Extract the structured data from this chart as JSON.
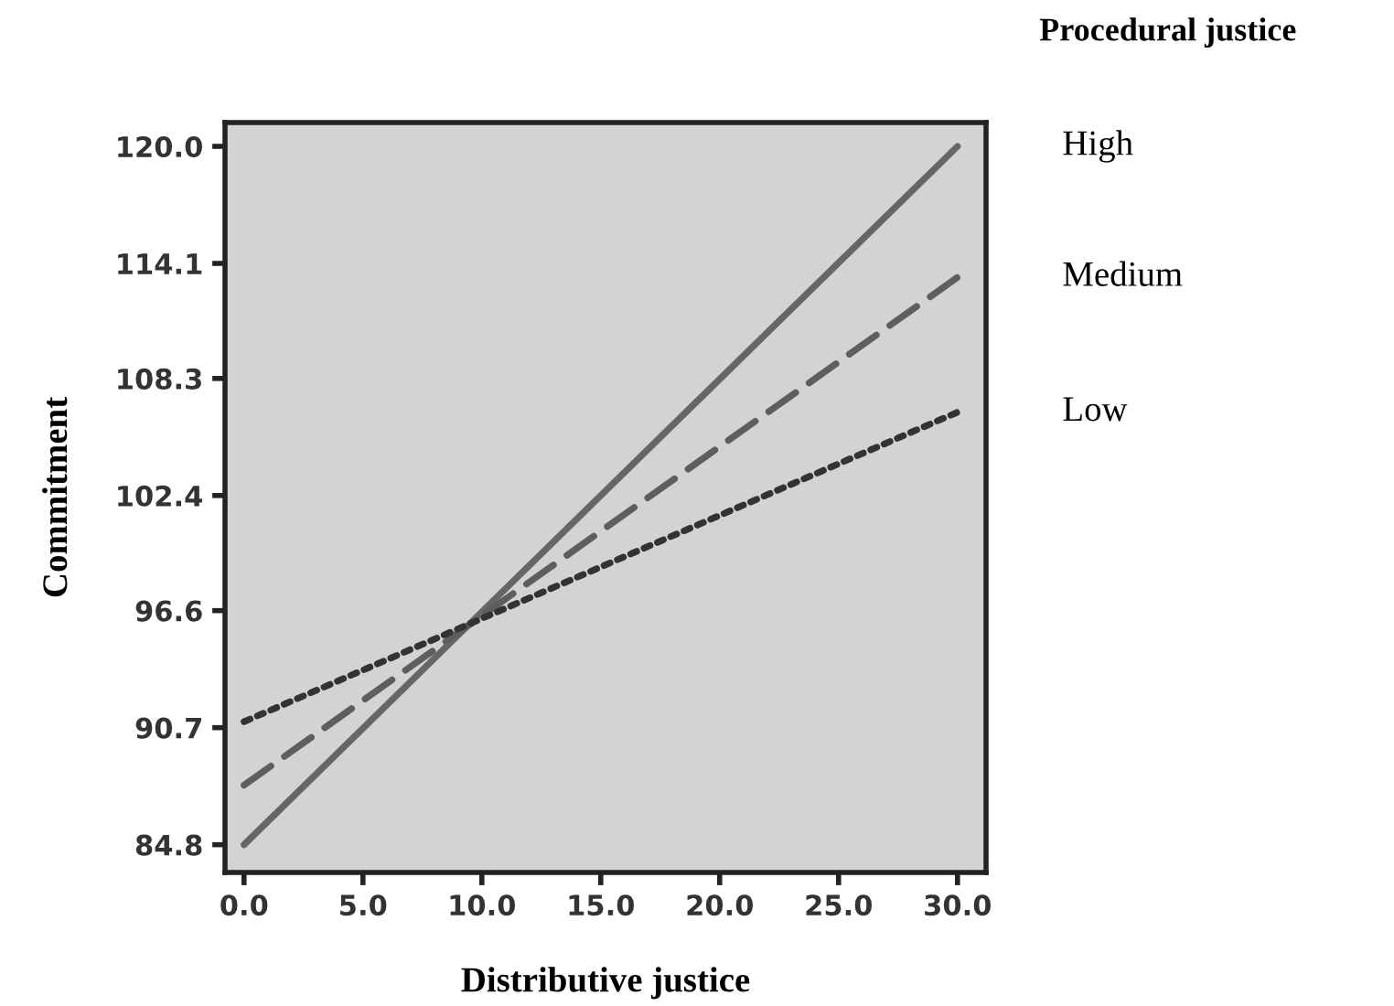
{
  "chart_data": {
    "type": "line",
    "xlabel": "Distributive justice",
    "ylabel": "Commitment",
    "legend_title": "Procedural justice",
    "x": [
      0,
      30
    ],
    "series": [
      {
        "name": "High",
        "color": "#666666",
        "values": [
          84.8,
          120.0
        ],
        "line_style": "solid"
      },
      {
        "name": "Medium",
        "color": "#5e5e5e",
        "values": [
          87.8,
          113.4
        ],
        "line_style": "dashed"
      },
      {
        "name": "Low",
        "color": "#333333",
        "values": [
          91.0,
          106.6
        ],
        "line_style": "dotted"
      }
    ],
    "xlim": [
      -0.8,
      31.2
    ],
    "ylim": [
      83.4,
      121.2
    ],
    "xticks": [
      {
        "value": 0,
        "label": "0.0"
      },
      {
        "value": 5,
        "label": "5.0"
      },
      {
        "value": 10,
        "label": "10.0"
      },
      {
        "value": 15,
        "label": "15.0"
      },
      {
        "value": 20,
        "label": "20.0"
      },
      {
        "value": 25,
        "label": "25.0"
      },
      {
        "value": 30,
        "label": "30.0"
      }
    ],
    "yticks": [
      84.8,
      90.7,
      96.6,
      102.4,
      108.3,
      114.1,
      {
        "value": 120,
        "label": "120.0"
      }
    ],
    "grid": false,
    "legend": "right"
  }
}
